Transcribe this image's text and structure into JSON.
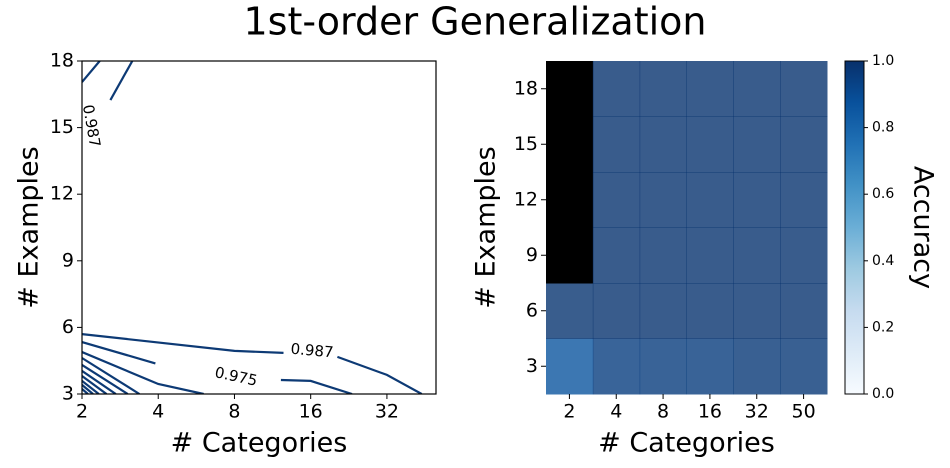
{
  "figure_title": "1st-order Generalization",
  "chart_data": [
    {
      "type": "contour",
      "xlabel": "# Categories",
      "ylabel": "# Examples",
      "xscale": "log",
      "xlim": [
        2,
        50
      ],
      "ylim": [
        3,
        18
      ],
      "xticks": [
        2,
        4,
        8,
        16,
        32
      ],
      "yticks": [
        3,
        6,
        9,
        12,
        15,
        18
      ],
      "color": "#0d3a75",
      "contours": [
        {
          "level": 0.987,
          "segments": [
            {
              "x": [
                2,
                2.35
              ],
              "y": [
                17.05,
                18
              ]
            },
            {
              "x": [
                2.59,
                3.16
              ],
              "y": [
                16.24,
                18
              ]
            },
            {
              "x": [
                2,
                8,
                12.5
              ],
              "y": [
                5.7,
                4.94,
                4.85
              ]
            },
            {
              "x": [
                20.4,
                32,
                43.9
              ],
              "y": [
                4.67,
                3.86,
                3
              ]
            }
          ]
        },
        {
          "level": 0.975,
          "segments": [
            {
              "x": [
                2,
                3.9
              ],
              "y": [
                5.34,
                4.38
              ]
            },
            {
              "x": [
                12.2,
                16,
                23.3
              ],
              "y": [
                3.63,
                3.59,
                3
              ]
            }
          ]
        },
        {
          "segments": [
            {
              "x": [
                2,
                4,
                6.05
              ],
              "y": [
                4.89,
                3.45,
                3
              ]
            }
          ]
        },
        {
          "segments": [
            {
              "x": [
                2,
                3.37
              ],
              "y": [
                4.62,
                3
              ]
            }
          ]
        },
        {
          "segments": [
            {
              "x": [
                2,
                3.03
              ],
              "y": [
                4.31,
                3
              ]
            }
          ]
        },
        {
          "segments": [
            {
              "x": [
                2,
                2.72
              ],
              "y": [
                4.04,
                3
              ]
            }
          ]
        },
        {
          "segments": [
            {
              "x": [
                2,
                2.5
              ],
              "y": [
                3.81,
                3
              ]
            }
          ]
        },
        {
          "segments": [
            {
              "x": [
                2,
                2.33
              ],
              "y": [
                3.59,
                3
              ]
            }
          ]
        },
        {
          "segments": [
            {
              "x": [
                2,
                2.21
              ],
              "y": [
                3.41,
                3
              ]
            }
          ]
        },
        {
          "segments": [
            {
              "x": [
                2,
                2.11
              ],
              "y": [
                3.23,
                3
              ]
            }
          ]
        }
      ]
    },
    {
      "type": "heatmap",
      "xlabel": "# Categories",
      "ylabel": "# Examples",
      "categories": [
        2,
        4,
        8,
        16,
        32,
        50
      ],
      "y_categories": [
        3,
        6,
        9,
        12,
        15,
        18
      ],
      "values": [
        [
          0.86,
          0.95,
          0.955,
          0.955,
          0.97,
          0.97
        ],
        [
          0.985,
          0.99,
          0.99,
          0.99,
          0.99,
          0.99
        ],
        [
          null,
          0.99,
          0.99,
          0.99,
          0.99,
          0.99
        ],
        [
          null,
          0.99,
          0.99,
          0.99,
          0.99,
          0.99
        ],
        [
          null,
          0.99,
          0.99,
          0.99,
          0.99,
          0.99
        ],
        [
          null,
          0.99,
          0.99,
          0.99,
          0.99,
          0.99
        ]
      ],
      "colormap": [
        "#f7fbff",
        "#deebf7",
        "#c6dbef",
        "#9ecae1",
        "#6baed6",
        "#4292c6",
        "#2171b5",
        "#08519c",
        "#08306b"
      ],
      "missing_color": "#000000",
      "cell_opacity": 0.8,
      "colorbar": {
        "label": "Accuracy",
        "lim": [
          0,
          1
        ],
        "ticks": [
          {
            "value": 0,
            "label": "0.0"
          },
          0.2,
          0.4,
          0.6,
          0.8,
          {
            "value": 1,
            "label": "1.0"
          }
        ]
      }
    }
  ]
}
